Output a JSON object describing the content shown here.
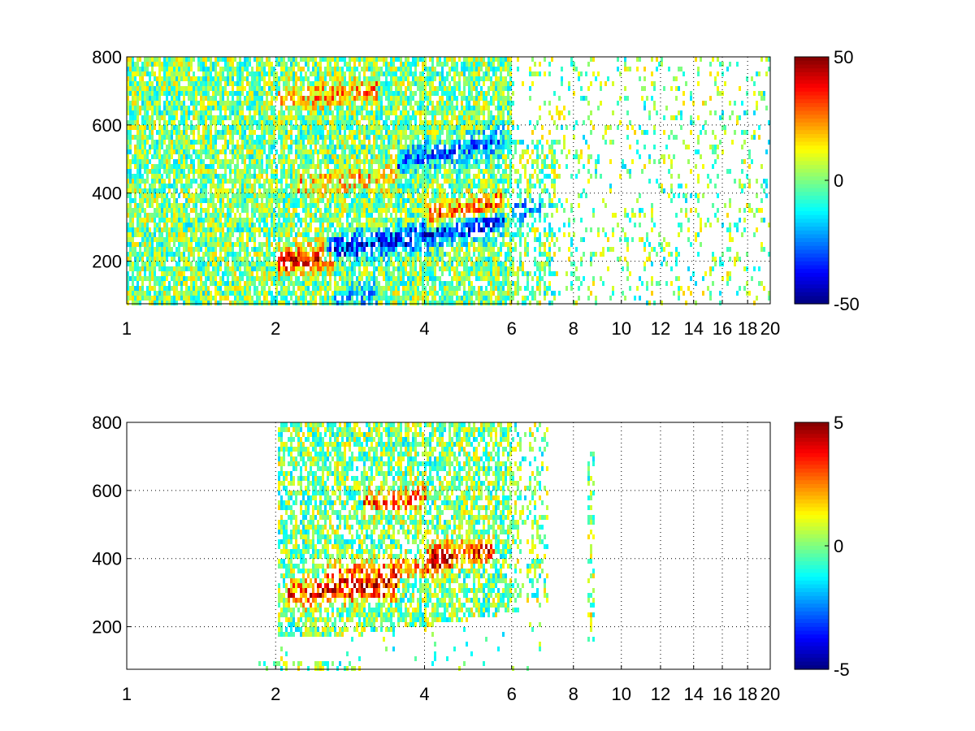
{
  "chart_data": [
    {
      "type": "heatmap",
      "title": "",
      "xlabel": "",
      "ylabel": "",
      "x_scale": "log",
      "xlim": [
        1,
        20
      ],
      "ylim": [
        75,
        800
      ],
      "xticks": [
        1,
        2,
        4,
        6,
        8,
        10,
        12,
        14,
        16,
        18,
        20
      ],
      "xtick_labels": [
        "1",
        "2",
        "4",
        "6",
        "8",
        "10",
        "12",
        "14",
        "16",
        "18",
        "20"
      ],
      "yticks": [
        200,
        400,
        600,
        800
      ],
      "ytick_labels": [
        "200",
        "400",
        "600",
        "800"
      ],
      "grid": true,
      "colormap": "jet",
      "clim": [
        -50,
        50
      ],
      "colorbar_ticks": [
        50,
        0,
        -50
      ],
      "colorbar_tick_labels": [
        "50",
        "0",
        "-50"
      ],
      "features": [
        {
          "x_range": [
            2.0,
            2.6
          ],
          "y_center": 205,
          "value": 45
        },
        {
          "x_range": [
            2.5,
            5.8
          ],
          "y_center": 240,
          "value": -45
        },
        {
          "x_range": [
            4.0,
            5.8
          ],
          "y_center": 330,
          "value": 35
        },
        {
          "x_range": [
            3.5,
            5.8
          ],
          "y_center": 500,
          "value": -30
        },
        {
          "x_range": [
            2.2,
            3.5
          ],
          "y_center": 430,
          "value": 20
        },
        {
          "x_range": [
            2.0,
            3.2
          ],
          "y_center": 680,
          "value": 25
        },
        {
          "x_range": [
            6.0,
            7.2
          ],
          "y_center": 350,
          "value": -25
        },
        {
          "x_range": [
            2.6,
            3.2
          ],
          "y_center": 95,
          "value": -20
        }
      ]
    },
    {
      "type": "heatmap",
      "title": "",
      "xlabel": "",
      "ylabel": "",
      "x_scale": "log",
      "xlim": [
        1,
        20
      ],
      "ylim": [
        75,
        800
      ],
      "xticks": [
        1,
        2,
        4,
        6,
        8,
        10,
        12,
        14,
        16,
        18,
        20
      ],
      "xtick_labels": [
        "1",
        "2",
        "4",
        "6",
        "8",
        "10",
        "12",
        "14",
        "16",
        "18",
        "20"
      ],
      "yticks": [
        200,
        400,
        600,
        800
      ],
      "ytick_labels": [
        "200",
        "400",
        "600",
        "800"
      ],
      "grid": true,
      "colormap": "jet",
      "clim": [
        -5,
        5
      ],
      "colorbar_ticks": [
        5,
        0,
        -5
      ],
      "colorbar_tick_labels": [
        "5",
        "0",
        "-5"
      ],
      "features": [
        {
          "x_range": [
            2.1,
            3.5
          ],
          "y_center": 300,
          "value": 4.5
        },
        {
          "x_range": [
            4.0,
            5.5
          ],
          "y_center": 410,
          "value": 4.2
        },
        {
          "x_range": [
            2.5,
            4.5
          ],
          "y_center": 360,
          "value": 2.5
        },
        {
          "x_range": [
            3.0,
            4.0
          ],
          "y_center": 570,
          "value": 3.0
        },
        {
          "x_range": [
            8.55,
            8.7
          ],
          "y_center": 200,
          "value": 3.0
        }
      ]
    }
  ]
}
